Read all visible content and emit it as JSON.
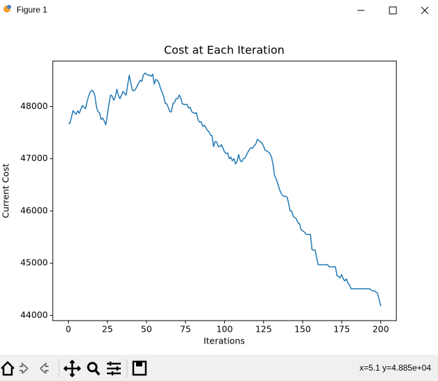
{
  "window": {
    "title": "Figure 1",
    "status": "x=5.1 y=4.885e+04"
  },
  "chart_data": {
    "type": "line",
    "title": "Cost at Each Iteration",
    "x_label": "Iterations",
    "y_label": "Current Cost",
    "x": [
      0,
      1,
      2,
      3,
      4,
      5,
      6,
      7,
      8,
      9,
      10,
      11,
      12,
      13,
      14,
      15,
      16,
      17,
      18,
      19,
      20,
      21,
      22,
      23,
      24,
      25,
      26,
      27,
      28,
      29,
      30,
      31,
      32,
      33,
      34,
      35,
      36,
      37,
      38,
      39,
      40,
      41,
      42,
      43,
      44,
      45,
      46,
      47,
      48,
      49,
      50,
      51,
      52,
      53,
      54,
      55,
      56,
      57,
      58,
      59,
      60,
      61,
      62,
      63,
      64,
      65,
      66,
      67,
      68,
      69,
      70,
      71,
      72,
      73,
      74,
      75,
      76,
      77,
      78,
      79,
      80,
      81,
      82,
      83,
      84,
      85,
      86,
      87,
      88,
      89,
      90,
      91,
      92,
      93,
      94,
      95,
      96,
      97,
      98,
      99,
      100,
      101,
      102,
      103,
      104,
      105,
      106,
      107,
      108,
      109,
      110,
      111,
      112,
      113,
      114,
      115,
      116,
      117,
      118,
      119,
      120,
      121,
      122,
      123,
      124,
      125,
      126,
      127,
      128,
      129,
      130,
      131,
      132,
      133,
      134,
      135,
      136,
      137,
      138,
      139,
      140,
      141,
      142,
      143,
      144,
      145,
      146,
      147,
      148,
      149,
      150,
      151,
      152,
      153,
      154,
      155,
      156,
      157,
      158,
      159,
      160,
      161,
      162,
      163,
      164,
      165,
      166,
      167,
      168,
      169,
      170,
      171,
      172,
      173,
      174,
      175,
      176,
      177,
      178,
      179,
      180,
      181,
      182,
      183,
      184,
      185,
      186,
      187,
      188,
      189,
      190,
      191,
      192,
      193,
      194,
      195,
      196,
      197,
      198,
      199,
      200
    ],
    "series": [
      {
        "color": "#1f77b4",
        "values": [
          47680,
          47680,
          47800,
          47920,
          47880,
          47850,
          47920,
          47870,
          47950,
          48020,
          47980,
          47960,
          48100,
          48200,
          48280,
          48310,
          48290,
          48200,
          47990,
          47900,
          47880,
          47750,
          47780,
          47720,
          47650,
          47850,
          48050,
          48220,
          48200,
          48120,
          48180,
          48330,
          48220,
          48150,
          48220,
          48290,
          48250,
          48220,
          48420,
          48600,
          48450,
          48310,
          48300,
          48330,
          48390,
          48450,
          48500,
          48480,
          48600,
          48640,
          48620,
          48600,
          48600,
          48580,
          48620,
          48430,
          48520,
          48500,
          48450,
          48350,
          48270,
          48200,
          48060,
          48050,
          47980,
          47900,
          47900,
          48060,
          48080,
          48150,
          48150,
          48220,
          48160,
          48050,
          48040,
          48040,
          48040,
          47970,
          47980,
          47900,
          47880,
          47870,
          47880,
          47750,
          47700,
          47710,
          47620,
          47640,
          47600,
          47540,
          47520,
          47450,
          47440,
          47230,
          47330,
          47320,
          47230,
          47230,
          47270,
          47200,
          47130,
          47100,
          47110,
          47000,
          47030,
          46960,
          47000,
          46900,
          46950,
          47080,
          46970,
          46940,
          47000,
          47010,
          47070,
          47130,
          47180,
          47210,
          47200,
          47250,
          47280,
          47370,
          47350,
          47320,
          47300,
          47240,
          47160,
          47150,
          47130,
          47100,
          47040,
          46900,
          46680,
          46620,
          46530,
          46430,
          46350,
          46300,
          46280,
          46280,
          46270,
          46150,
          46000,
          46000,
          45900,
          45870,
          45850,
          45770,
          45760,
          45640,
          45620,
          45600,
          45560,
          45550,
          45550,
          45550,
          45260,
          45250,
          45250,
          45100,
          44970,
          44970,
          44970,
          44970,
          44970,
          44970,
          44970,
          44930,
          44930,
          44930,
          44930,
          44930,
          44760,
          44740,
          44720,
          44780,
          44700,
          44660,
          44700,
          44620,
          44580,
          44510,
          44510,
          44510,
          44510,
          44510,
          44510,
          44510,
          44510,
          44510,
          44510,
          44510,
          44510,
          44510,
          44480,
          44470,
          44470,
          44450,
          44420,
          44300,
          44180
        ]
      }
    ],
    "xlim": [
      -10,
      210
    ],
    "xticks": [
      0,
      25,
      50,
      75,
      100,
      125,
      150,
      175,
      200
    ],
    "ylim": [
      43900,
      48870
    ],
    "yticks": [
      44000,
      45000,
      46000,
      47000,
      48000
    ]
  }
}
